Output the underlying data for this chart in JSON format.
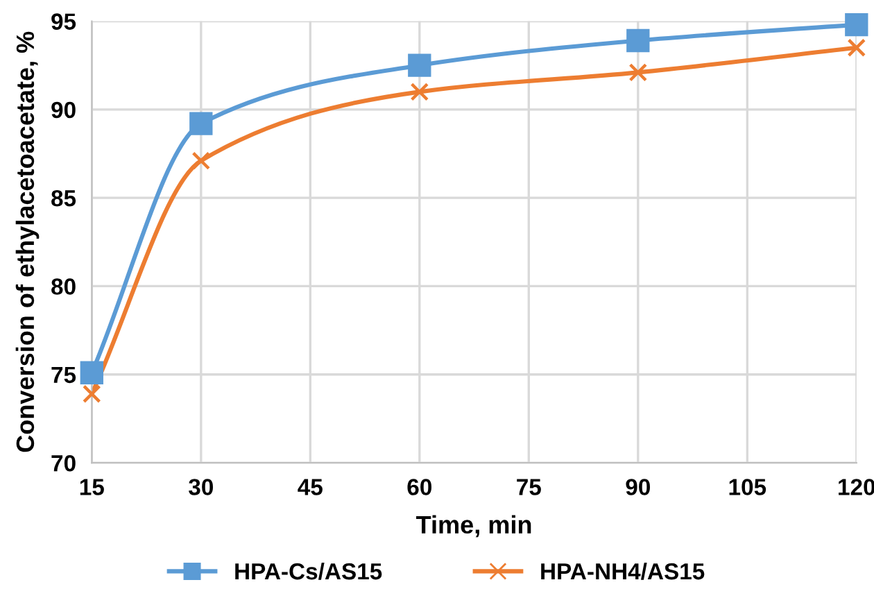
{
  "chart_data": {
    "type": "line",
    "xlabel": "Time, min",
    "ylabel": "Conversion of ethylacetoacetate, %",
    "x": [
      15,
      30,
      60,
      90,
      120
    ],
    "series": [
      {
        "name": "HPA-Cs/AS15",
        "color": "#5b9bd5",
        "marker": "square",
        "values": [
          75.1,
          89.2,
          92.5,
          93.9,
          94.8
        ]
      },
      {
        "name": "HPA-NH4/AS15",
        "color": "#ed7d31",
        "marker": "cross",
        "values": [
          73.9,
          87.1,
          91.0,
          92.1,
          93.5
        ]
      }
    ],
    "xlim": [
      15,
      120
    ],
    "xticks": [
      15,
      30,
      45,
      60,
      75,
      90,
      105,
      120
    ],
    "ylim": [
      70,
      95
    ],
    "yticks": [
      70,
      75,
      80,
      85,
      90,
      95
    ],
    "grid": true,
    "legend": "bottom",
    "line_style": "solid"
  }
}
